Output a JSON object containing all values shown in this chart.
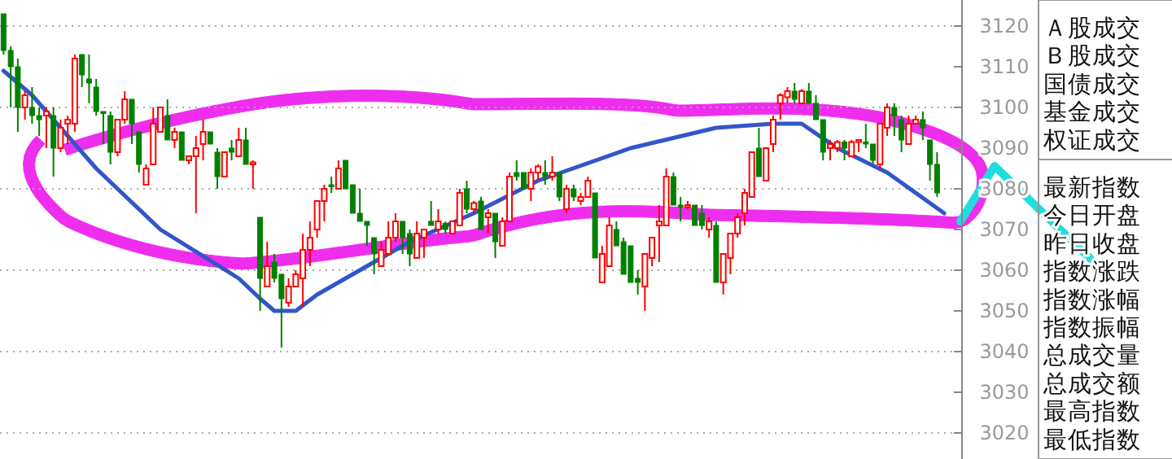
{
  "chart_data": [
    {
      "type": "candlestick",
      "categories": [
        null,
        null,
        null,
        null,
        null,
        null,
        null,
        null,
        null,
        null,
        null,
        null,
        null,
        null,
        null,
        null,
        null,
        null,
        null,
        null,
        null,
        null,
        null,
        null,
        null,
        null,
        null,
        null,
        null,
        null,
        null,
        null,
        null,
        null,
        null,
        null,
        null,
        null,
        null,
        null,
        null,
        null,
        null,
        null,
        null,
        null,
        null,
        null,
        null,
        null,
        null,
        null,
        null,
        null,
        null,
        null,
        null,
        null,
        null,
        null,
        null,
        null,
        null,
        null,
        null,
        null,
        null,
        null,
        null,
        null,
        null,
        null,
        null,
        null,
        null,
        null,
        null,
        null,
        null,
        null,
        null,
        null,
        null,
        null,
        null,
        null,
        null,
        null,
        null,
        null,
        null,
        null,
        null,
        null,
        null,
        null,
        null,
        null,
        null,
        null,
        null,
        null,
        null,
        null,
        null,
        null,
        null,
        null,
        null,
        null,
        null,
        null,
        null,
        null,
        null,
        null,
        null,
        null,
        null,
        null,
        null,
        null,
        null,
        null,
        null,
        null,
        null,
        null,
        null,
        null,
        null,
        null,
        null,
        null,
        null
      ],
      "ohlc": [
        [
          3123,
          3123,
          3113,
          3114
        ],
        [
          3114,
          3115,
          3100,
          3110
        ],
        [
          3110,
          3112,
          3094,
          3100
        ],
        [
          3100,
          3104,
          3097,
          3103
        ],
        [
          3100,
          3105,
          3096,
          3098
        ],
        [
          3098,
          3100,
          3093,
          3097
        ],
        [
          3098,
          3100,
          3090,
          3099
        ],
        [
          3098,
          3100,
          3083,
          3090
        ],
        [
          3090,
          3097,
          3089,
          3095
        ],
        [
          3096,
          3098,
          3091,
          3097
        ],
        [
          3096,
          3113,
          3094,
          3112
        ],
        [
          3113,
          3113,
          3105,
          3108
        ],
        [
          3107,
          3113,
          3101,
          3106
        ],
        [
          3105,
          3107,
          3098,
          3099
        ],
        [
          3099,
          3099,
          3091,
          3098.5
        ],
        [
          3098,
          3099,
          3086,
          3089
        ],
        [
          3089,
          3097,
          3088,
          3097
        ],
        [
          3097,
          3104,
          3096,
          3102
        ],
        [
          3102,
          3102,
          3091,
          3096
        ],
        [
          3094,
          3094,
          3084,
          3086
        ],
        [
          3081,
          3086,
          3081,
          3085
        ],
        [
          3086,
          3100,
          3086,
          3096
        ],
        [
          3094,
          3100,
          3094,
          3100
        ],
        [
          3098,
          3102,
          3092,
          3092
        ],
        [
          3092,
          3095,
          3090,
          3094
        ],
        [
          3094,
          3094,
          3087,
          3087
        ],
        [
          3087,
          3088,
          3086,
          3088
        ],
        [
          3088,
          3093,
          3074,
          3090
        ],
        [
          3091,
          3097,
          3087,
          3094
        ],
        [
          3094,
          3094,
          3091,
          3091
        ],
        [
          3089,
          3090,
          3080,
          3083
        ],
        [
          3083,
          3089,
          3083,
          3089
        ],
        [
          3090,
          3092,
          3087,
          3089
        ],
        [
          3088,
          3095,
          3088,
          3092
        ],
        [
          3092,
          3095,
          3086,
          3086
        ],
        [
          3086,
          3087,
          3080,
          3086.5
        ],
        [
          3073,
          3073,
          3050,
          3058
        ],
        [
          3056,
          3067,
          3056,
          3061
        ],
        [
          3062,
          3064,
          3057,
          3058
        ],
        [
          3059,
          3059,
          3041,
          3053
        ],
        [
          3052,
          3058,
          3051,
          3056
        ],
        [
          3056,
          3060,
          3056,
          3059
        ],
        [
          3058,
          3069,
          3051,
          3065
        ],
        [
          3065,
          3072,
          3061,
          3068
        ],
        [
          3070,
          3077,
          3068,
          3077
        ],
        [
          3077,
          3081,
          3072,
          3080
        ],
        [
          3081,
          3083,
          3079,
          3080.5
        ],
        [
          3080,
          3087,
          3080,
          3085
        ],
        [
          3087,
          3087,
          3080,
          3080
        ],
        [
          3081,
          3081,
          3074,
          3074
        ],
        [
          3074,
          3080,
          3072,
          3072
        ],
        [
          3072,
          3072,
          3066,
          3071
        ],
        [
          3068,
          3068,
          3059,
          3064
        ],
        [
          3061,
          3067,
          3061,
          3065
        ],
        [
          3064,
          3072,
          3064,
          3068
        ],
        [
          3068,
          3074,
          3067,
          3072
        ],
        [
          3072,
          3072,
          3064,
          3068
        ],
        [
          3069,
          3070,
          3061,
          3064
        ],
        [
          3063,
          3072,
          3063,
          3069
        ],
        [
          3068,
          3070,
          3063,
          3070
        ],
        [
          3072,
          3077,
          3071,
          3071
        ],
        [
          3070,
          3075,
          3069,
          3072
        ],
        [
          3071.5,
          3072,
          3069,
          3070
        ],
        [
          3069,
          3072,
          3069,
          3072
        ],
        [
          3071,
          3080,
          3071,
          3079
        ],
        [
          3080,
          3082,
          3074,
          3075
        ],
        [
          3075,
          3077,
          3074,
          3076.5
        ],
        [
          3077,
          3078,
          3070,
          3070
        ],
        [
          3073,
          3075,
          3069,
          3074
        ],
        [
          3074,
          3074,
          3063,
          3067
        ],
        [
          3066,
          3073,
          3066,
          3072
        ],
        [
          3072,
          3084,
          3072,
          3083
        ],
        [
          3084,
          3087,
          3082,
          3083
        ],
        [
          3084,
          3084,
          3080,
          3080
        ],
        [
          3080,
          3085,
          3077,
          3084
        ],
        [
          3084,
          3086,
          3082,
          3085.5
        ],
        [
          3084,
          3087,
          3081,
          3083
        ],
        [
          3083,
          3088,
          3082,
          3084
        ],
        [
          3084,
          3084,
          3077,
          3078
        ],
        [
          3075,
          3081,
          3074,
          3080
        ],
        [
          3080,
          3081,
          3077,
          3078
        ],
        [
          3077,
          3079,
          3076,
          3078
        ],
        [
          3078,
          3083,
          3078,
          3082
        ],
        [
          3079,
          3079,
          3063,
          3063
        ],
        [
          3057,
          3066,
          3057,
          3064
        ],
        [
          3061,
          3073,
          3061,
          3071
        ],
        [
          3070,
          3072,
          3066,
          3066
        ],
        [
          3067,
          3068,
          3059,
          3059
        ],
        [
          3066,
          3066,
          3057,
          3057
        ],
        [
          3058,
          3060,
          3054,
          3057
        ],
        [
          3056,
          3064,
          3050,
          3064
        ],
        [
          3063,
          3068,
          3061,
          3068
        ],
        [
          3071,
          3076,
          3062,
          3072
        ],
        [
          3071,
          3085,
          3071,
          3083
        ],
        [
          3083,
          3084,
          3076,
          3076
        ],
        [
          3076,
          3078,
          3072,
          3075.5
        ],
        [
          3075.5,
          3077,
          3075,
          3076
        ],
        [
          3076,
          3076,
          3071,
          3071
        ],
        [
          3074,
          3076,
          3070,
          3071
        ],
        [
          3070,
          3073,
          3068,
          3072
        ],
        [
          3071,
          3072,
          3057,
          3057
        ],
        [
          3057,
          3064,
          3054,
          3064
        ],
        [
          3063,
          3069,
          3059,
          3069
        ],
        [
          3069,
          3074,
          3068,
          3073
        ],
        [
          3074,
          3080,
          3071,
          3079
        ],
        [
          3078,
          3089,
          3078,
          3089
        ],
        [
          3090,
          3095,
          3083,
          3083
        ],
        [
          3082,
          3090,
          3082,
          3090
        ],
        [
          3091,
          3098,
          3089,
          3097
        ],
        [
          3101,
          3103.5,
          3097,
          3103
        ],
        [
          3102.5,
          3105,
          3101,
          3104
        ],
        [
          3104,
          3106,
          3101,
          3102
        ],
        [
          3101,
          3104.5,
          3101,
          3104
        ],
        [
          3104,
          3106,
          3101,
          3101
        ],
        [
          3101,
          3103,
          3097,
          3097
        ],
        [
          3097,
          3097,
          3087,
          3089
        ],
        [
          3090,
          3092,
          3087,
          3091
        ],
        [
          3090,
          3092,
          3089,
          3091.5
        ],
        [
          3091.5,
          3092,
          3087,
          3090
        ],
        [
          3088,
          3092,
          3088,
          3091.5
        ],
        [
          3091.5,
          3092,
          3089,
          3092
        ],
        [
          3091.5,
          3096,
          3090,
          3091
        ],
        [
          3091,
          3091,
          3086,
          3087
        ],
        [
          3086,
          3096,
          3085,
          3096
        ],
        [
          3095,
          3101,
          3093,
          3100
        ],
        [
          3100,
          3101,
          3093,
          3098
        ],
        [
          3097,
          3098,
          3089,
          3092
        ],
        [
          3091,
          3098,
          3091,
          3096
        ],
        [
          3096,
          3098,
          3096,
          3097
        ],
        [
          3097,
          3099,
          3092,
          3095
        ],
        [
          3092,
          3092,
          3082,
          3086
        ],
        [
          3086,
          3089,
          3078,
          3079
        ],
        null,
        null,
        null
      ],
      "series": [
        {
          "type": "line",
          "color": "#3355cc",
          "values": [
            3109,
            null,
            null,
            null,
            3103,
            null,
            null,
            null,
            null,
            null,
            null,
            null,
            null,
            3085,
            null,
            null,
            null,
            null,
            null,
            null,
            null,
            null,
            3070,
            null,
            null,
            null,
            null,
            null,
            null,
            null,
            null,
            null,
            null,
            3058,
            null,
            null,
            3053,
            null,
            3050,
            null,
            null,
            3050,
            null,
            null,
            3054,
            null,
            null,
            null,
            null,
            null,
            3060,
            null,
            null,
            null,
            null,
            null,
            null,
            3067,
            null,
            null,
            null,
            null,
            null,
            null,
            null,
            null,
            3074,
            null,
            null,
            null,
            null,
            null,
            null,
            null,
            null,
            3082,
            null,
            null,
            null,
            null,
            null,
            null,
            null,
            null,
            null,
            null,
            null,
            null,
            3090,
            null,
            null,
            null,
            null,
            null,
            null,
            null,
            null,
            null,
            null,
            null,
            3095,
            null,
            null,
            null,
            null,
            null,
            null,
            null,
            3096,
            null,
            null,
            null,
            3096,
            null,
            null,
            null,
            null,
            3090,
            null,
            null,
            null,
            null,
            null,
            null,
            3084,
            null,
            null,
            null,
            null,
            null,
            null,
            null,
            3074,
            null,
            null
          ]
        }
      ],
      "ylim": [
        3013.6,
        3126.4
      ],
      "yticks": [
        3020,
        3030,
        3040,
        3050,
        3060,
        3070,
        3080,
        3090,
        3100,
        3110,
        3120
      ],
      "grid": "y"
    },
    {
      "type": "other",
      "annotations": [
        "Ａ股成交",
        "Ｂ股成交",
        "国债成交",
        "基金成交",
        "权证成交"
      ]
    },
    {
      "type": "other",
      "annotations": [
        "最新指数",
        "今日开盘",
        "昨日收盘",
        "指数涨跌",
        "指数涨幅",
        "指数振幅",
        "总成交量",
        "总成交额",
        "最高指数",
        "最低指数"
      ]
    }
  ]
}
